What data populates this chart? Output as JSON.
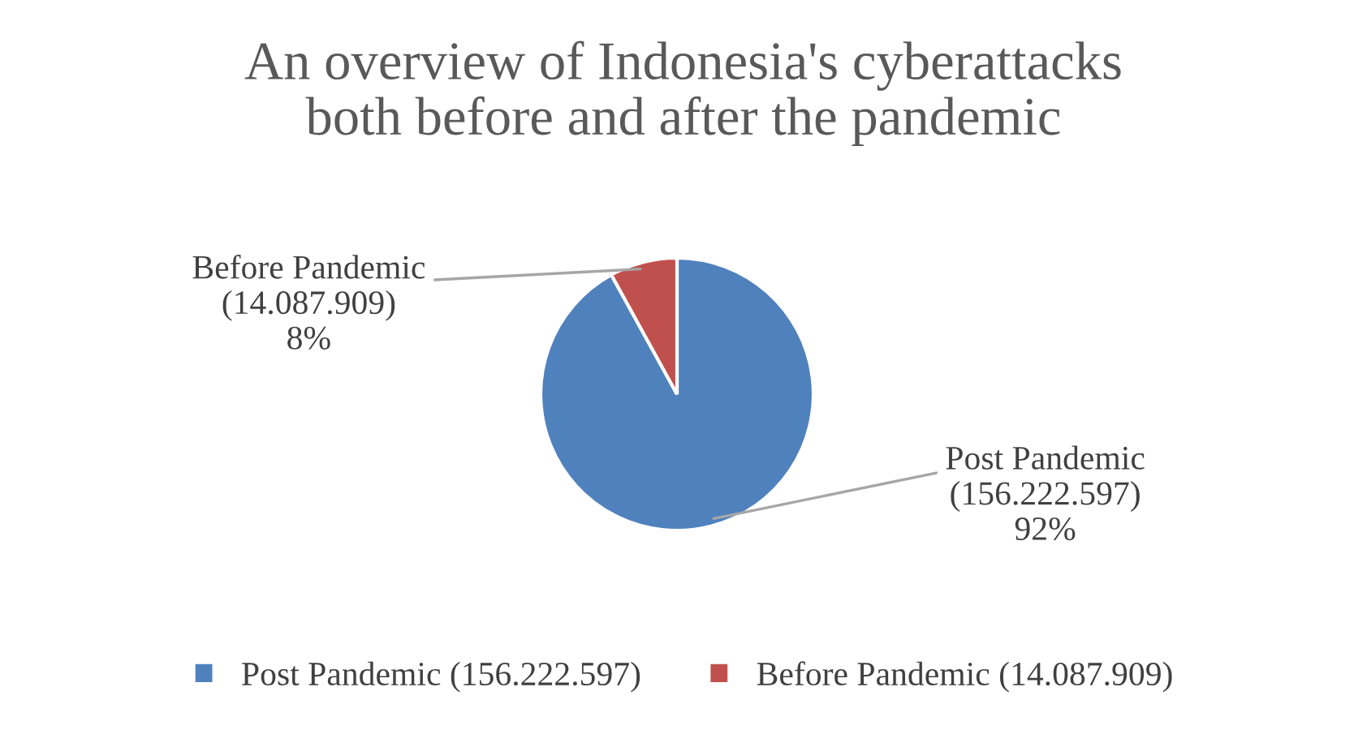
{
  "chart_data": {
    "type": "pie",
    "title": "An overview of Indonesia's cyberattacks\nboth before and after the pandemic",
    "categories": [
      "Post Pandemic (156.222.597)",
      "Before Pandemic (14.087.909)"
    ],
    "values": [
      92,
      8
    ],
    "value_labels": [
      "92%",
      "8%"
    ],
    "colors": [
      "#4f81bd",
      "#c0504d"
    ],
    "legend": "bottom"
  }
}
